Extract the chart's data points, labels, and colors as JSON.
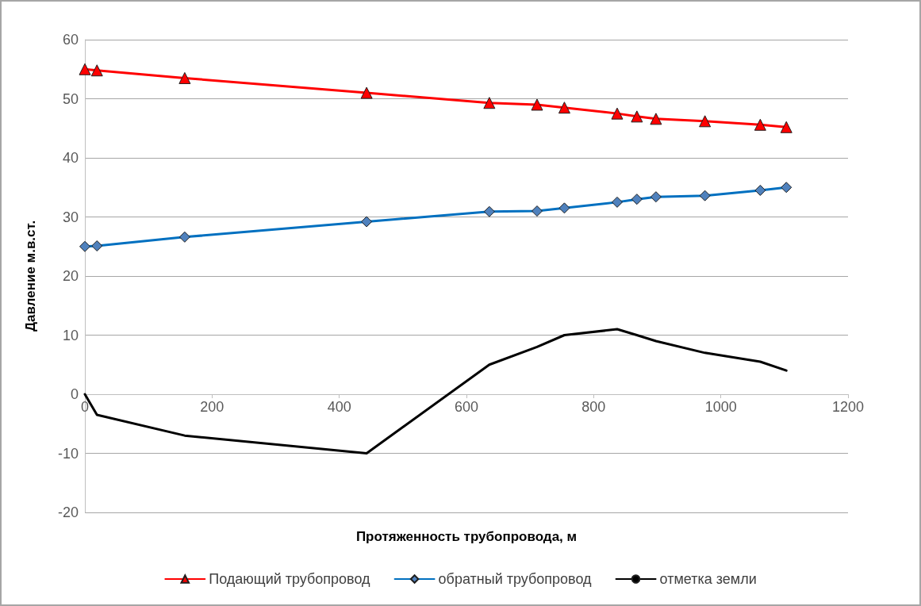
{
  "chart_data": {
    "type": "line",
    "xlabel": "Протяженность трубопровода, м",
    "ylabel": "Давление м.в.ст.",
    "x": [
      0,
      19,
      157,
      443,
      636,
      711,
      754,
      837,
      868,
      898,
      975,
      1062,
      1103
    ],
    "series": [
      {
        "name": "Подающий трубопровод",
        "color": "#ff0000",
        "marker": "triangle",
        "values": [
          55,
          54.8,
          53.5,
          51,
          49.3,
          49,
          48.5,
          47.5,
          47,
          46.6,
          46.2,
          45.6,
          45.2
        ]
      },
      {
        "name": "обратный трубопровод",
        "color": "#0070c0",
        "marker": "diamond",
        "values": [
          25,
          25.1,
          26.6,
          29.2,
          30.9,
          31,
          31.5,
          32.5,
          33,
          33.4,
          33.6,
          34.5,
          35
        ]
      },
      {
        "name": "отметка земли",
        "color": "#000000",
        "marker": "none",
        "values": [
          0,
          -3.5,
          -7,
          -10,
          5,
          8,
          10,
          11,
          10,
          9,
          7,
          5.5,
          4
        ]
      }
    ],
    "xlim": [
      0,
      1200
    ],
    "xticks": [
      0,
      200,
      400,
      600,
      800,
      1000,
      1200
    ],
    "ylim": [
      -20,
      60
    ],
    "yticks": [
      -20,
      -10,
      0,
      10,
      20,
      30,
      40,
      50,
      60
    ],
    "grid": "y",
    "legend": "bottom",
    "line_style": "solid"
  }
}
